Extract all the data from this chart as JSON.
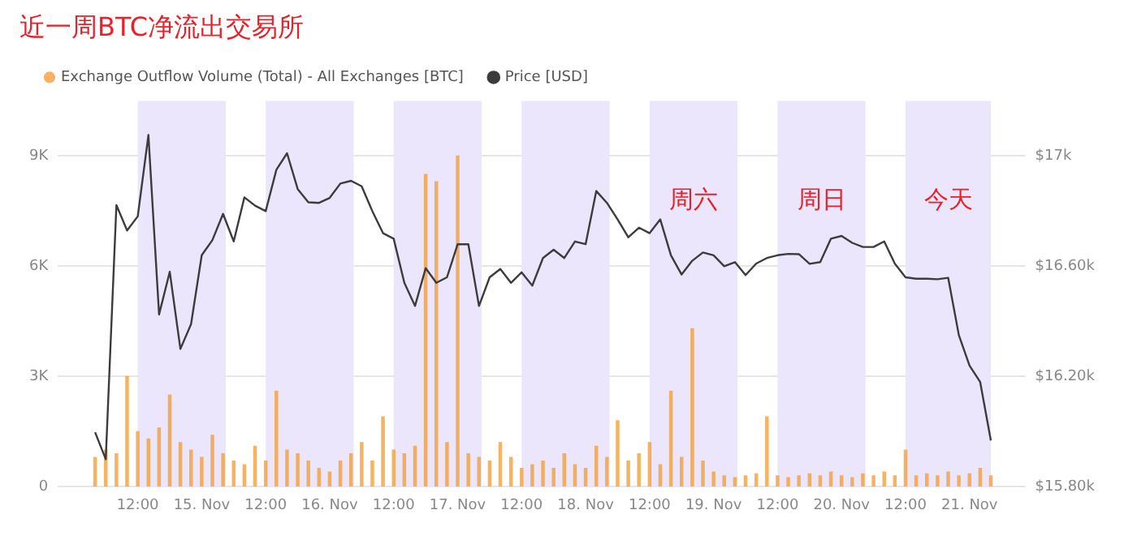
{
  "chart_data": {
    "type": "bar",
    "title": "近一周BTC净流出交易所",
    "x": [
      "--11-14T04:00",
      "--11-14T06:00",
      "--11-14T08:00",
      "--11-14T10:00",
      "--11-14T12:00",
      "--11-14T14:00",
      "--11-14T16:00",
      "--11-14T18:00",
      "--11-14T20:00",
      "--11-14T22:00",
      "--11-15T00:00",
      "--11-15T02:00",
      "--11-15T04:00",
      "--11-15T06:00",
      "--11-15T08:00",
      "--11-15T10:00",
      "--11-15T12:00",
      "--11-15T14:00",
      "--11-15T16:00",
      "--11-15T18:00",
      "--11-15T20:00",
      "--11-15T22:00",
      "--11-16T00:00",
      "--11-16T02:00",
      "--11-16T04:00",
      "--11-16T06:00",
      "--11-16T08:00",
      "--11-16T10:00",
      "--11-16T12:00",
      "--11-16T14:00",
      "--11-16T16:00",
      "--11-16T18:00",
      "--11-16T20:00",
      "--11-16T22:00",
      "--11-17T00:00",
      "--11-17T02:00",
      "--11-17T04:00",
      "--11-17T06:00",
      "--11-17T08:00",
      "--11-17T10:00",
      "--11-17T12:00",
      "--11-17T14:00",
      "--11-17T16:00",
      "--11-17T18:00",
      "--11-17T20:00",
      "--11-17T22:00",
      "--11-18T00:00",
      "--11-18T02:00",
      "--11-18T04:00",
      "--11-18T06:00",
      "--11-18T08:00",
      "--11-18T10:00",
      "--11-18T12:00",
      "--11-18T14:00",
      "--11-18T16:00",
      "--11-18T18:00",
      "--11-18T20:00",
      "--11-18T22:00",
      "--11-19T00:00",
      "--11-19T02:00",
      "--11-19T04:00",
      "--11-19T06:00",
      "--11-19T08:00",
      "--11-19T10:00",
      "--11-19T12:00",
      "--11-19T14:00",
      "--11-19T16:00",
      "--11-19T18:00",
      "--11-19T20:00",
      "--11-19T22:00",
      "--11-20T00:00",
      "--11-20T02:00",
      "--11-20T04:00",
      "--11-20T06:00",
      "--11-20T08:00",
      "--11-20T10:00",
      "--11-20T12:00",
      "--11-20T14:00",
      "--11-20T16:00",
      "--11-20T18:00",
      "--11-20T20:00",
      "--11-20T22:00",
      "--11-21T00:00",
      "--11-21T02:00",
      "--11-21T04:00"
    ],
    "series": [
      {
        "name": "Exchange Outflow Volume (Total) - All Exchanges [BTC]",
        "color": "#f2a03c",
        "values": [
          800,
          1000,
          900,
          3000,
          1500,
          1300,
          1600,
          2500,
          1200,
          1000,
          800,
          1400,
          900,
          700,
          600,
          1100,
          700,
          2600,
          1000,
          900,
          700,
          500,
          400,
          700,
          900,
          1200,
          700,
          1900,
          1000,
          900,
          1100,
          8500,
          8300,
          1200,
          9000,
          900,
          800,
          700,
          1200,
          800,
          500,
          600,
          700,
          500,
          900,
          600,
          500,
          1100,
          800,
          1800,
          700,
          900,
          1200,
          600,
          2600,
          800,
          4300,
          700,
          400,
          300,
          250,
          300,
          350,
          1900,
          300,
          250,
          300,
          350,
          300,
          400,
          300,
          250,
          350,
          300,
          400,
          300,
          1000,
          300,
          350,
          300,
          400,
          300,
          350,
          500,
          300
        ]
      },
      {
        "name": "Price [USD]",
        "type": "line",
        "axis": "y2",
        "color": "#3c3c3c",
        "values": [
          15998,
          15900,
          16822,
          16730,
          16781,
          17076,
          16425,
          16580,
          16300,
          16390,
          16640,
          16695,
          16790,
          16690,
          16850,
          16820,
          16800,
          16950,
          17010,
          16880,
          16832,
          16830,
          16848,
          16900,
          16910,
          16890,
          16800,
          16720,
          16700,
          16540,
          16456,
          16593,
          16540,
          16560,
          16680,
          16680,
          16456,
          16560,
          16590,
          16540,
          16578,
          16530,
          16630,
          16660,
          16630,
          16690,
          16680,
          16873,
          16830,
          16770,
          16705,
          16740,
          16720,
          16770,
          16640,
          16570,
          16620,
          16650,
          16640,
          16600,
          16615,
          16568,
          16610,
          16630,
          16640,
          16645,
          16644,
          16609,
          16615,
          16700,
          16710,
          16685,
          16670,
          16670,
          16690,
          16609,
          16560,
          16555,
          16555,
          16553,
          16558,
          16350,
          16240,
          16180,
          15968
        ]
      }
    ],
    "xlim": [
      "--11-14T03:30",
      "--11-21T04:00"
    ],
    "xticks": [
      {
        "value": "--11-14T12:00",
        "label": "12:00"
      },
      {
        "value": "--11-15T00:00",
        "label": "15. Nov"
      },
      {
        "value": "--11-15T12:00",
        "label": "12:00"
      },
      {
        "value": "--11-16T00:00",
        "label": "16. Nov"
      },
      {
        "value": "--11-16T12:00",
        "label": "12:00"
      },
      {
        "value": "--11-17T00:00",
        "label": "17. Nov"
      },
      {
        "value": "--11-17T12:00",
        "label": "12:00"
      },
      {
        "value": "--11-18T00:00",
        "label": "18. Nov"
      },
      {
        "value": "--11-18T12:00",
        "label": "12:00"
      },
      {
        "value": "--11-19T00:00",
        "label": "19. Nov"
      },
      {
        "value": "--11-19T12:00",
        "label": "12:00"
      },
      {
        "value": "--11-20T00:00",
        "label": "20. Nov"
      },
      {
        "value": "--11-20T12:00",
        "label": "12:00"
      },
      {
        "value": "--11-21T00:00",
        "label": "21. Nov"
      }
    ],
    "ylim": [
      0,
      10500
    ],
    "yticks": [
      0,
      {
        "value": 3000,
        "label": "3K"
      },
      {
        "value": 6000,
        "label": "6K"
      },
      {
        "value": 9000,
        "label": "9K"
      }
    ],
    "y2lim": [
      15800,
      17200
    ],
    "y2ticks": [
      {
        "value": 15800,
        "label": "$15.80k"
      },
      {
        "value": 16200,
        "label": "$16.20k"
      },
      {
        "value": 16600,
        "label": "$16.60k"
      },
      {
        "value": 17000,
        "label": "$17k"
      }
    ],
    "bands": [
      {
        "axis": "x",
        "from": "--11-14T12:00",
        "to": "--11-15T04:30",
        "color": "#ebe6fc"
      },
      {
        "axis": "x",
        "from": "--11-15T12:00",
        "to": "--11-16T04:30",
        "color": "#ebe6fc"
      },
      {
        "axis": "x",
        "from": "--11-16T12:00",
        "to": "--11-17T04:30",
        "color": "#ebe6fc"
      },
      {
        "axis": "x",
        "from": "--11-17T12:00",
        "to": "--11-18T04:30",
        "color": "#ebe6fc"
      },
      {
        "axis": "x",
        "from": "--11-18T12:00",
        "to": "--11-19T04:30",
        "color": "#ebe6fc",
        "label": "周六"
      },
      {
        "axis": "x",
        "from": "--11-19T12:00",
        "to": "--11-20T04:30",
        "color": "#ebe6fc",
        "label": "周日"
      },
      {
        "axis": "x",
        "from": "--11-20T12:00",
        "to": "--11-21T04:00",
        "color": "#ebe6fc",
        "label": "今天"
      }
    ],
    "grid": "y",
    "legend": "top left",
    "marker": "none"
  }
}
